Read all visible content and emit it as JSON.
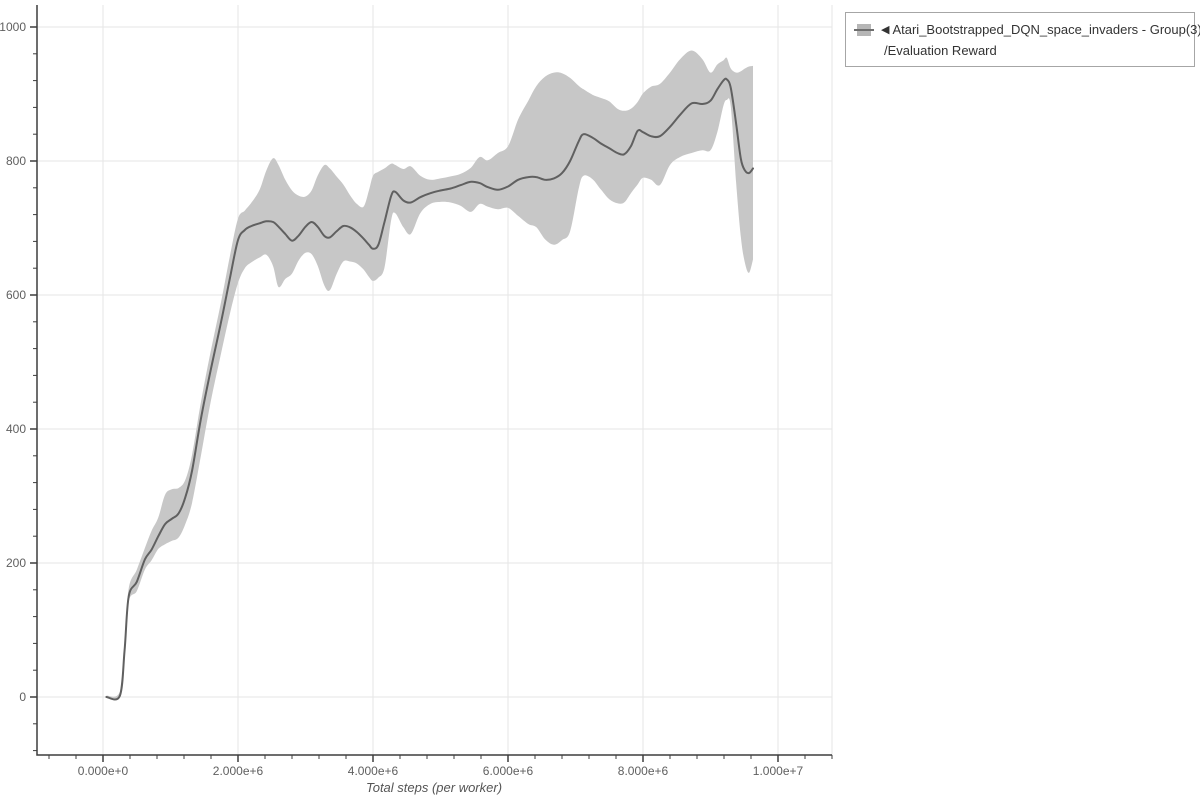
{
  "legend": {
    "collapse_icon": "◀",
    "series_label": "Atari_Bootstrapped_DQN_space_invaders - Group(3)",
    "series_sublabel": "/Evaluation Reward"
  },
  "colors": {
    "background": "#ffffff",
    "band": "#c7c7c7",
    "line": "#606060",
    "grid": "#e6e6e6",
    "axis": "#3d3d3d",
    "tick_label": "#5f5f5f",
    "axis_title": "#555555",
    "legend_border": "#a6a6a6",
    "legend_text": "#333333",
    "legend_swatch_band": "#b6b6b6",
    "legend_swatch_line": "#6e6e6e"
  },
  "chart_data": {
    "type": "line",
    "title": "",
    "series_name": "Atari_Bootstrapped_DQN_space_invaders - Group(3)/Evaluation Reward",
    "x_axis": {
      "title": "Total steps (per worker)",
      "range": [
        -980000,
        10800000
      ],
      "minor_tick_step": 400000,
      "ticks": [
        {
          "value": 0,
          "label": "0.000e+0"
        },
        {
          "value": 2000000,
          "label": "2.000e+6"
        },
        {
          "value": 4000000,
          "label": "4.000e+6"
        },
        {
          "value": 6000000,
          "label": "6.000e+6"
        },
        {
          "value": 8000000,
          "label": "8.000e+6"
        },
        {
          "value": 10000000,
          "label": "1.000e+7"
        }
      ]
    },
    "y_axis": {
      "title": "",
      "range": [
        -87,
        1033
      ],
      "minor_tick_step": 40,
      "ticks": [
        {
          "value": 0,
          "label": "0"
        },
        {
          "value": 200,
          "label": "200"
        },
        {
          "value": 400,
          "label": "400"
        },
        {
          "value": 600,
          "label": "600"
        },
        {
          "value": 800,
          "label": "800"
        },
        {
          "value": 1000,
          "label": "1000"
        }
      ]
    },
    "grid": "major-only",
    "legend_position": "outside-top-right",
    "band_meaning": "min-max range across group of 3 runs",
    "points_format": [
      "total_steps",
      "mean_reward",
      "band_lower",
      "band_upper"
    ],
    "points": [
      [
        50000,
        0,
        0,
        2
      ],
      [
        250000,
        2,
        0,
        8
      ],
      [
        320000,
        70,
        64,
        80
      ],
      [
        380000,
        150,
        142,
        162
      ],
      [
        500000,
        172,
        158,
        190
      ],
      [
        620000,
        205,
        190,
        222
      ],
      [
        720000,
        220,
        204,
        248
      ],
      [
        820000,
        240,
        221,
        268
      ],
      [
        920000,
        258,
        228,
        302
      ],
      [
        1020000,
        266,
        233,
        310
      ],
      [
        1120000,
        274,
        238,
        312
      ],
      [
        1220000,
        298,
        258,
        324
      ],
      [
        1320000,
        338,
        290,
        362
      ],
      [
        1450000,
        415,
        360,
        440
      ],
      [
        1600000,
        490,
        443,
        518
      ],
      [
        1750000,
        560,
        513,
        590
      ],
      [
        1880000,
        625,
        572,
        658
      ],
      [
        2000000,
        682,
        618,
        714
      ],
      [
        2100000,
        697,
        640,
        726
      ],
      [
        2200000,
        703,
        649,
        738
      ],
      [
        2320000,
        707,
        656,
        757
      ],
      [
        2420000,
        710,
        660,
        786
      ],
      [
        2520000,
        709,
        643,
        804
      ],
      [
        2600000,
        702,
        612,
        794
      ],
      [
        2700000,
        691,
        624,
        772
      ],
      [
        2800000,
        681,
        632,
        756
      ],
      [
        2900000,
        689,
        652,
        748
      ],
      [
        3000000,
        702,
        663,
        747
      ],
      [
        3090000,
        709,
        661,
        756
      ],
      [
        3180000,
        702,
        644,
        778
      ],
      [
        3280000,
        688,
        614,
        794
      ],
      [
        3360000,
        686,
        607,
        789
      ],
      [
        3460000,
        695,
        631,
        777
      ],
      [
        3560000,
        703,
        650,
        765
      ],
      [
        3660000,
        701,
        650,
        749
      ],
      [
        3760000,
        694,
        647,
        736
      ],
      [
        3860000,
        684,
        638,
        732
      ],
      [
        3940000,
        675,
        627,
        756
      ],
      [
        4000000,
        669,
        621,
        778
      ],
      [
        4080000,
        675,
        626,
        784
      ],
      [
        4170000,
        709,
        641,
        789
      ],
      [
        4270000,
        748,
        712,
        796
      ],
      [
        4330000,
        754,
        722,
        794
      ],
      [
        4450000,
        741,
        701,
        788
      ],
      [
        4560000,
        738,
        691,
        792
      ],
      [
        4700000,
        746,
        722,
        778
      ],
      [
        4850000,
        752,
        736,
        772
      ],
      [
        5000000,
        756,
        739,
        774
      ],
      [
        5150000,
        759,
        738,
        777
      ],
      [
        5300000,
        764,
        733,
        781
      ],
      [
        5450000,
        769,
        724,
        790
      ],
      [
        5580000,
        767,
        736,
        806
      ],
      [
        5700000,
        761,
        732,
        801
      ],
      [
        5850000,
        757,
        728,
        812
      ],
      [
        6000000,
        762,
        730,
        822
      ],
      [
        6150000,
        772,
        718,
        862
      ],
      [
        6300000,
        776,
        706,
        890
      ],
      [
        6420000,
        776,
        701,
        912
      ],
      [
        6550000,
        772,
        683,
        926
      ],
      [
        6680000,
        774,
        675,
        932
      ],
      [
        6800000,
        782,
        682,
        931
      ],
      [
        6920000,
        800,
        695,
        924
      ],
      [
        7050000,
        830,
        760,
        912
      ],
      [
        7120000,
        840,
        778,
        907
      ],
      [
        7250000,
        835,
        773,
        899
      ],
      [
        7380000,
        826,
        757,
        894
      ],
      [
        7500000,
        819,
        743,
        889
      ],
      [
        7620000,
        812,
        737,
        878
      ],
      [
        7720000,
        810,
        738,
        875
      ],
      [
        7820000,
        822,
        752,
        878
      ],
      [
        7920000,
        845,
        765,
        888
      ],
      [
        8000000,
        843,
        775,
        901
      ],
      [
        8120000,
        837,
        772,
        911
      ],
      [
        8250000,
        837,
        764,
        915
      ],
      [
        8400000,
        851,
        794,
        932
      ],
      [
        8550000,
        869,
        806,
        952
      ],
      [
        8720000,
        886,
        812,
        965
      ],
      [
        8880000,
        885,
        816,
        952
      ],
      [
        9000000,
        890,
        816,
        932
      ],
      [
        9100000,
        907,
        843,
        944
      ],
      [
        9190000,
        920,
        882,
        950
      ],
      [
        9240000,
        922,
        891,
        954
      ],
      [
        9300000,
        909,
        881,
        938
      ],
      [
        9380000,
        856,
        768,
        932
      ],
      [
        9450000,
        803,
        686,
        934
      ],
      [
        9510000,
        786,
        648,
        938
      ],
      [
        9570000,
        782,
        633,
        941
      ],
      [
        9630000,
        789,
        653,
        942
      ]
    ]
  }
}
